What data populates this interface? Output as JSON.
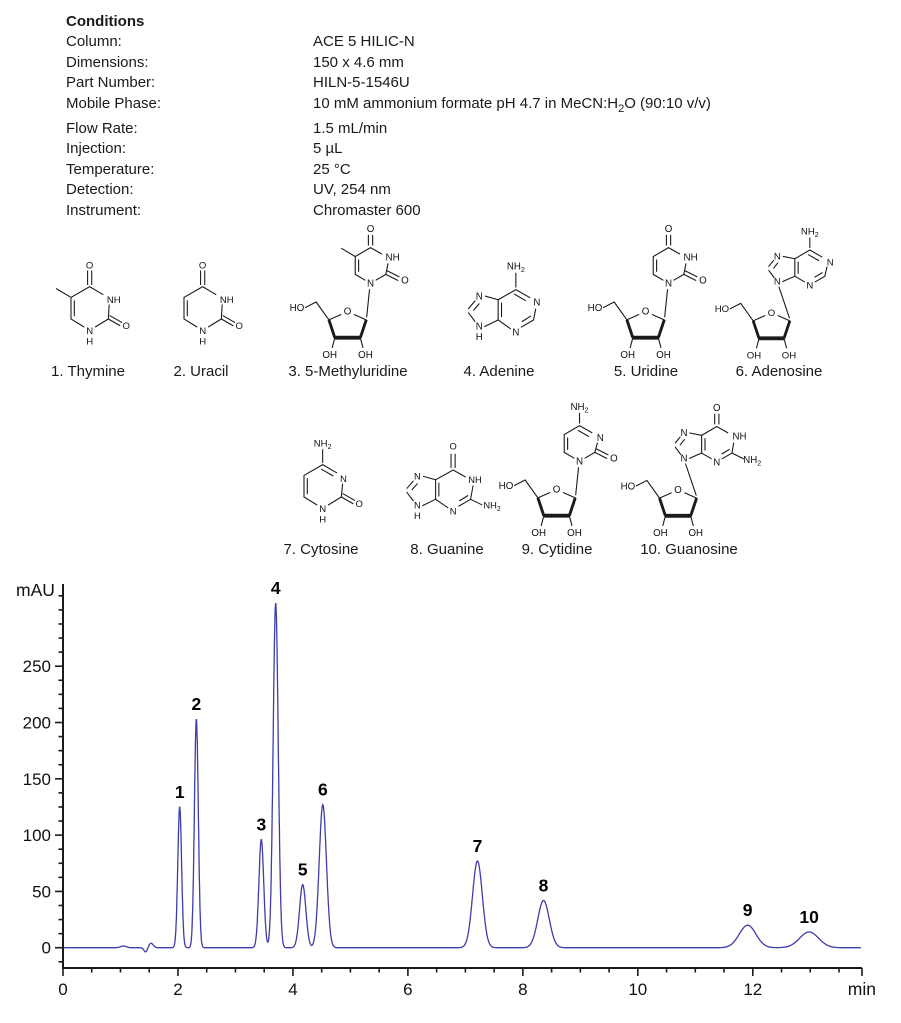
{
  "conditions": {
    "title": "Conditions",
    "rows": [
      {
        "label": "Column:",
        "value": "ACE 5 HILIC-N"
      },
      {
        "label": "Dimensions:",
        "value": "150 x 4.6 mm"
      },
      {
        "label": "Part Number:",
        "value": "HILN-5-1546U"
      },
      {
        "label": "Mobile Phase:",
        "value_parts": {
          "pre": "10 mM ammonium formate pH 4.7 in MeCN:H",
          "sub": "2",
          "post": "O (90:10 v/v)"
        }
      },
      {
        "label": "Flow Rate:",
        "value": "1.5 mL/min"
      },
      {
        "label": "Injection:",
        "value": "5 µL"
      },
      {
        "label": "Temperature:",
        "value": "25 °C"
      },
      {
        "label": "Detection:",
        "value": "UV, 254 nm"
      },
      {
        "label": "Instrument:",
        "value": "Chromaster 600"
      }
    ]
  },
  "structures": {
    "row1": [
      {
        "caption": "1. Thymine"
      },
      {
        "caption": "2. Uracil"
      },
      {
        "caption": "3. 5-Methyluridine"
      },
      {
        "caption": "4. Adenine"
      },
      {
        "caption": "5. Uridine"
      },
      {
        "caption": "6. Adenosine"
      }
    ],
    "row2": [
      {
        "caption": "7. Cytosine"
      },
      {
        "caption": "8. Guanine"
      },
      {
        "caption": "9. Cytidine"
      },
      {
        "caption": "10. Guanosine"
      }
    ]
  },
  "chart_data": {
    "type": "line",
    "title": "",
    "xlabel": "min",
    "ylabel": "mAU",
    "xlim": [
      0,
      13.9
    ],
    "ylim": [
      -18,
      323
    ],
    "x_major_ticks": [
      0,
      2,
      4,
      6,
      8,
      10,
      12
    ],
    "x_minor_step": 0.5,
    "y_major_ticks": [
      0,
      50,
      100,
      150,
      200,
      250
    ],
    "y_minor_step": 12.5,
    "grid": false,
    "trace_color": "#3d3dac",
    "axis_color": "#1a1a1a",
    "peaks": [
      {
        "label": "1",
        "compound": "Thymine",
        "rt_min": 2.03,
        "height_mau": 125,
        "sigma_min": 0.033
      },
      {
        "label": "2",
        "compound": "Uracil",
        "rt_min": 2.32,
        "height_mau": 203,
        "sigma_min": 0.034
      },
      {
        "label": "3",
        "compound": "5-Methyluridine",
        "rt_min": 3.45,
        "height_mau": 96,
        "sigma_min": 0.042
      },
      {
        "label": "4",
        "compound": "Adenine",
        "rt_min": 3.7,
        "height_mau": 306,
        "sigma_min": 0.044
      },
      {
        "label": "5",
        "compound": "Uridine",
        "rt_min": 4.17,
        "height_mau": 56,
        "sigma_min": 0.055
      },
      {
        "label": "6",
        "compound": "Adenosine",
        "rt_min": 4.52,
        "height_mau": 127,
        "sigma_min": 0.063
      },
      {
        "label": "7",
        "compound": "Cytosine",
        "rt_min": 7.21,
        "height_mau": 77,
        "sigma_min": 0.085
      },
      {
        "label": "8",
        "compound": "Guanine",
        "rt_min": 8.36,
        "height_mau": 42,
        "sigma_min": 0.1
      },
      {
        "label": "9",
        "compound": "Cytidine",
        "rt_min": 11.91,
        "height_mau": 20,
        "sigma_min": 0.145
      },
      {
        "label": "10",
        "compound": "Guanosine",
        "rt_min": 12.98,
        "height_mau": 14,
        "sigma_min": 0.165
      }
    ],
    "baseline_disturbances": [
      {
        "rt_min": 1.05,
        "height_mau": 1.5,
        "sigma_min": 0.05
      },
      {
        "rt_min": 1.44,
        "height_mau": -4.0,
        "sigma_min": 0.03
      },
      {
        "rt_min": 1.53,
        "height_mau": 4.0,
        "sigma_min": 0.04
      }
    ]
  }
}
